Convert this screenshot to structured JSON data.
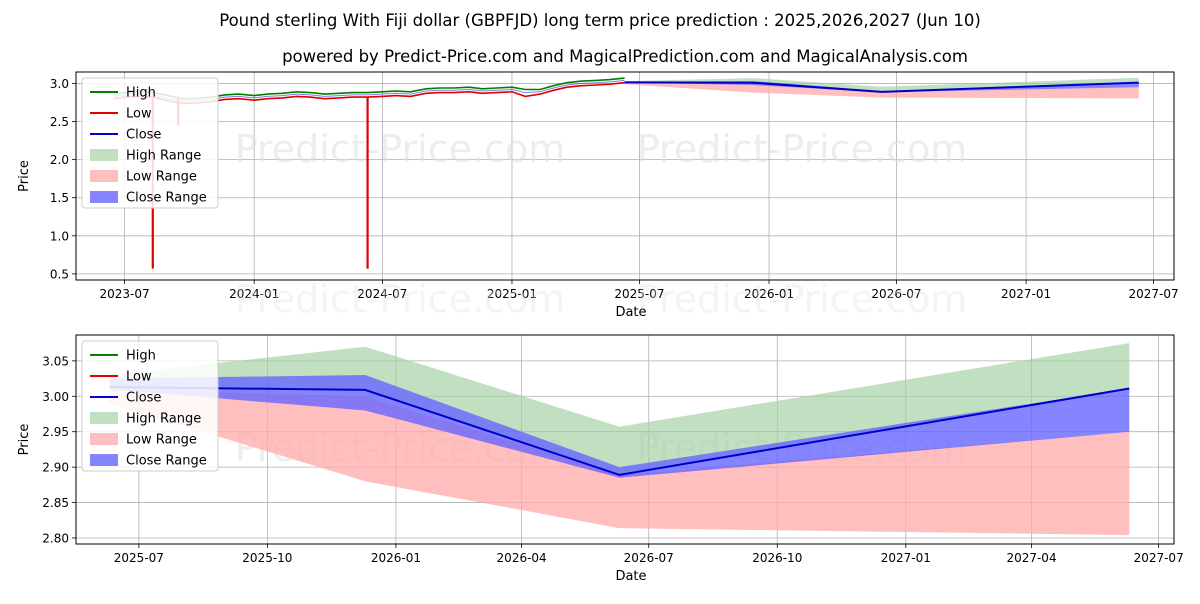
{
  "title": "Pound sterling With Fiji dollar (GBPFJD) long term price prediction : 2025,2026,2027 (Jun 10)",
  "subtitle": "powered by Predict-Price.com and MagicalPrediction.com and MagicalAnalysis.com",
  "watermark": "Predict-Price.com",
  "colors": {
    "high": "#008000",
    "low": "#e00000",
    "close": "#0000cc",
    "high_range": "#9fd09f",
    "low_range": "#ffaaaa",
    "close_range": "#6666ff",
    "grid": "#b0b0b0",
    "watermark": "#e0e0e0"
  },
  "chart_data": [
    {
      "type": "line",
      "xlabel": "Date",
      "ylabel": "Price",
      "x_ticks": [
        "2023-07",
        "2024-01",
        "2024-07",
        "2025-01",
        "2025-07",
        "2026-01",
        "2026-07",
        "2027-01",
        "2027-07"
      ],
      "y_ticks": [
        "0.5",
        "1.0",
        "1.5",
        "2.0",
        "2.5",
        "3.0"
      ],
      "xlim": [
        "2023-04-23",
        "2027-07-30"
      ],
      "ylim": [
        0.42,
        3.15
      ],
      "grid": true,
      "legend": {
        "position": "top-left",
        "entries": [
          "High",
          "Low",
          "Close",
          "High Range",
          "Low Range",
          "Close Range"
        ]
      },
      "history": {
        "dates": [
          "2023-06-15",
          "2023-07-01",
          "2023-07-20",
          "2023-08-10",
          "2023-09-01",
          "2023-09-20",
          "2023-10-10",
          "2023-11-01",
          "2023-11-20",
          "2023-12-10",
          "2024-01-01",
          "2024-01-20",
          "2024-02-10",
          "2024-03-01",
          "2024-03-20",
          "2024-04-10",
          "2024-05-01",
          "2024-05-20",
          "2024-06-10",
          "2024-07-01",
          "2024-07-20",
          "2024-08-10",
          "2024-09-01",
          "2024-09-20",
          "2024-10-10",
          "2024-11-01",
          "2024-11-20",
          "2024-12-10",
          "2025-01-01",
          "2025-01-20",
          "2025-02-10",
          "2025-03-01",
          "2025-03-20",
          "2025-04-10",
          "2025-05-01",
          "2025-05-20",
          "2025-06-10"
        ],
        "high": [
          2.86,
          2.88,
          2.89,
          2.88,
          2.84,
          2.8,
          2.8,
          2.82,
          2.85,
          2.86,
          2.84,
          2.86,
          2.87,
          2.89,
          2.88,
          2.86,
          2.87,
          2.88,
          2.88,
          2.89,
          2.9,
          2.89,
          2.93,
          2.94,
          2.94,
          2.95,
          2.93,
          2.94,
          2.95,
          2.92,
          2.92,
          2.97,
          3.01,
          3.03,
          3.04,
          3.05,
          3.07
        ],
        "low": [
          2.8,
          2.82,
          2.83,
          2.82,
          2.77,
          2.74,
          2.74,
          2.76,
          2.79,
          2.8,
          2.78,
          2.8,
          2.81,
          2.83,
          2.82,
          2.8,
          2.81,
          2.82,
          2.82,
          2.83,
          2.84,
          2.83,
          2.87,
          2.88,
          2.88,
          2.89,
          2.87,
          2.88,
          2.89,
          2.83,
          2.86,
          2.91,
          2.95,
          2.97,
          2.98,
          2.99,
          3.01
        ],
        "close": [
          2.83,
          2.85,
          2.86,
          2.85,
          2.8,
          2.77,
          2.77,
          2.79,
          2.82,
          2.83,
          2.81,
          2.83,
          2.84,
          2.86,
          2.85,
          2.83,
          2.84,
          2.85,
          2.85,
          2.86,
          2.87,
          2.86,
          2.9,
          2.91,
          2.91,
          2.92,
          2.9,
          2.91,
          2.92,
          2.88,
          2.89,
          2.94,
          2.98,
          3.0,
          3.01,
          3.02,
          3.04
        ]
      },
      "low_spikes": [
        {
          "date": "2023-08-10",
          "value": 0.57
        },
        {
          "date": "2023-09-15",
          "value": 2.45
        },
        {
          "date": "2024-06-10",
          "value": 0.57
        }
      ],
      "forecast": {
        "dates": [
          "2025-06-10",
          "2025-12-10",
          "2026-06-10",
          "2027-06-10"
        ],
        "close": [
          3.013,
          3.009,
          2.889,
          3.011
        ],
        "high_range": [
          [
            3.013,
            3.03
          ],
          [
            3.009,
            3.07
          ],
          [
            2.889,
            2.957
          ],
          [
            3.011,
            3.075
          ]
        ],
        "low_range": [
          [
            2.99,
            3.01
          ],
          [
            2.88,
            3.0
          ],
          [
            2.814,
            2.889
          ],
          [
            2.804,
            2.95
          ]
        ],
        "close_range": [
          [
            3.01,
            3.025
          ],
          [
            2.98,
            3.03
          ],
          [
            2.885,
            2.9
          ],
          [
            2.95,
            3.011
          ]
        ]
      }
    },
    {
      "type": "line",
      "xlabel": "Date",
      "ylabel": "Price",
      "x_ticks": [
        "2025-07",
        "2025-10",
        "2026-01",
        "2026-04",
        "2026-07",
        "2026-10",
        "2027-01",
        "2027-04",
        "2027-07"
      ],
      "y_ticks": [
        "2.80",
        "2.85",
        "2.90",
        "2.95",
        "3.00",
        "3.05"
      ],
      "xlim": [
        "2025-05-17",
        "2027-07-12"
      ],
      "ylim": [
        2.7915,
        3.0865
      ],
      "grid": true,
      "legend": {
        "position": "top-left",
        "entries": [
          "High",
          "Low",
          "Close",
          "High Range",
          "Low Range",
          "Close Range"
        ]
      },
      "forecast": {
        "dates": [
          "2025-06-10",
          "2025-12-10",
          "2026-06-10",
          "2027-06-10"
        ],
        "close": [
          3.013,
          3.009,
          2.889,
          3.011
        ],
        "high_range": [
          [
            3.013,
            3.03
          ],
          [
            3.009,
            3.07
          ],
          [
            2.889,
            2.957
          ],
          [
            3.011,
            3.075
          ]
        ],
        "low_range": [
          [
            2.99,
            3.01
          ],
          [
            2.88,
            3.0
          ],
          [
            2.814,
            2.889
          ],
          [
            2.804,
            2.95
          ]
        ],
        "close_range": [
          [
            3.01,
            3.025
          ],
          [
            2.98,
            3.03
          ],
          [
            2.885,
            2.9
          ],
          [
            2.95,
            3.011
          ]
        ]
      }
    }
  ]
}
